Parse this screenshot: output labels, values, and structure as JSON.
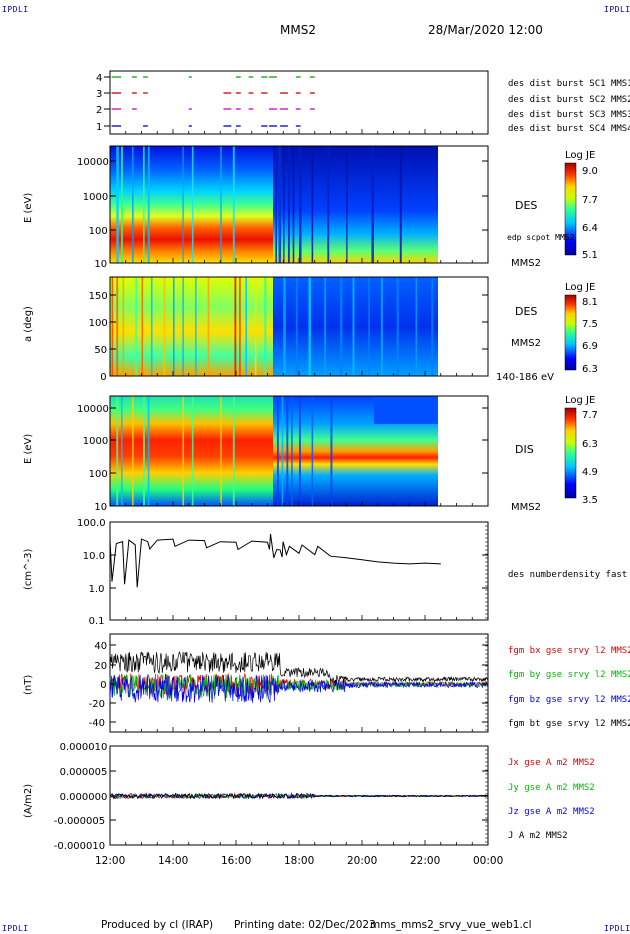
{
  "header": {
    "ipdli_tl": "IPDLI",
    "ipdli_tr": "IPDLI",
    "ipdli_bl": "IPDLI",
    "ipdli_br": "IPDLI",
    "title": "MMS2",
    "datetime": "28/Mar/2020 12:00"
  },
  "footer": {
    "produced_by": "Produced by cl (IRAP)",
    "printing_date": "Printing date: 02/Dec/2023",
    "filename": "mms_mms2_srvy_vue_web1.cl"
  },
  "colors": {
    "mms1": "#0000cc",
    "mms2": "#cc00cc",
    "mms3": "#cc0000",
    "mms4": "#00aa00",
    "bx": "#dd0000",
    "by": "#00bb00",
    "bz": "#0000ee",
    "bt": "#000000"
  },
  "chart_data": [
    {
      "type": "scatter",
      "panel": "burst",
      "x_ticks": [
        "12:00",
        "14:00",
        "16:00",
        "18:00",
        "20:00",
        "22:00",
        "00:00"
      ],
      "y_ticks": [
        "4",
        "3",
        "2",
        "1"
      ],
      "legend": [
        {
          "name": "des dist burst SC1 MMS1",
          "color": "#0000cc"
        },
        {
          "name": "des dist burst SC2 MMS2",
          "color": "#cc00cc"
        },
        {
          "name": "des dist burst SC3 MMS3",
          "color": "#cc0000"
        },
        {
          "name": "des dist burst SC4 MMS4",
          "color": "#00aa00"
        }
      ],
      "burst_intervals_hours": [
        [
          0.05,
          0.35
        ],
        [
          0.7,
          0.85
        ],
        [
          1.05,
          1.2
        ],
        [
          2.5,
          2.6
        ],
        [
          3.6,
          3.85
        ],
        [
          4.0,
          4.15
        ],
        [
          4.4,
          4.55
        ],
        [
          4.8,
          5.0
        ],
        [
          5.05,
          5.3
        ],
        [
          5.4,
          5.65
        ],
        [
          5.9,
          6.05
        ],
        [
          6.35,
          6.5
        ]
      ]
    },
    {
      "type": "heatmap",
      "panel": "des-energy",
      "ylabel": "E (eV)",
      "y_ticks": [
        "10000",
        "1000",
        "100",
        "10"
      ],
      "label": "DES",
      "secondary_label": "edp scpot MMS2",
      "spacecraft": "MMS2",
      "colorbar_title": "Log JE",
      "colorbar_ticks": [
        "9.0",
        "7.7",
        "6.4",
        "5.1"
      ]
    },
    {
      "type": "heatmap",
      "panel": "des-pitch",
      "ylabel": "a (deg)",
      "y_ticks": [
        "150",
        "100",
        "50",
        "0"
      ],
      "label": "DES",
      "spacecraft": "MMS2",
      "energy_range": "140-186 eV",
      "colorbar_title": "Log JE",
      "colorbar_ticks": [
        "8.1",
        "7.5",
        "6.9",
        "6.3"
      ]
    },
    {
      "type": "heatmap",
      "panel": "dis-energy",
      "ylabel": "E (eV)",
      "y_ticks": [
        "10000",
        "1000",
        "100",
        "10"
      ],
      "label": "DIS",
      "spacecraft": "MMS2",
      "colorbar_title": "Log JE",
      "colorbar_ticks": [
        "7.7",
        "6.3",
        "4.9",
        "3.5"
      ]
    },
    {
      "type": "line",
      "panel": "density",
      "ylabel": "(cm^-3)",
      "y_ticks": [
        "100.0",
        "10.0",
        "1.0",
        "0.1"
      ],
      "yscale": "log",
      "series": [
        {
          "name": "des numberdensity fast M",
          "color": "#000000",
          "x_hours": [
            0.0,
            0.2,
            0.4,
            0.6,
            0.8,
            1.0,
            1.2,
            1.5,
            2.0,
            2.5,
            3.0,
            3.5,
            4.0,
            4.5,
            5.0,
            5.2,
            5.4,
            5.6,
            6.0,
            6.5,
            7.0,
            7.5,
            8.0,
            8.5,
            9.0,
            9.5,
            10.0,
            10.5
          ],
          "values": [
            30,
            22,
            25,
            28,
            20,
            30,
            25,
            28,
            30,
            28,
            27,
            25,
            24,
            26,
            24,
            8,
            14,
            10,
            11,
            10,
            9,
            8,
            7,
            6,
            5.5,
            5.2,
            5.5,
            5.2
          ]
        }
      ]
    },
    {
      "type": "line",
      "panel": "magnetic-field",
      "ylabel": "(nT)",
      "y_ticks": [
        "40",
        "20",
        "0",
        "-20",
        "-40"
      ],
      "ylim": [
        -45,
        45
      ],
      "series": [
        {
          "name": "fgm bx gse srvy l2 MMS2",
          "color": "#dd0000"
        },
        {
          "name": "fgm by gse srvy l2 MMS2",
          "color": "#00bb00"
        },
        {
          "name": "fgm bz gse srvy l2 MMS2",
          "color": "#0000ee"
        },
        {
          "name": "fgm bt gse srvy l2 MMS2",
          "color": "#000000"
        }
      ]
    },
    {
      "type": "line",
      "panel": "current-density",
      "ylabel": "(A/m2)",
      "y_ticks": [
        "0.000010",
        "0.000005",
        "0.000000",
        "-0.000005",
        "-0.000010"
      ],
      "ylim": [
        -1e-05,
        1e-05
      ],
      "series": [
        {
          "name": "Jx gse A m2 MMS2",
          "color": "#dd0000"
        },
        {
          "name": "Jy gse A m2 MMS2",
          "color": "#00bb00"
        },
        {
          "name": "Jz gse A m2 MMS2",
          "color": "#0000ee"
        },
        {
          "name": "J A m2 MMS2",
          "color": "#000000"
        }
      ]
    }
  ]
}
